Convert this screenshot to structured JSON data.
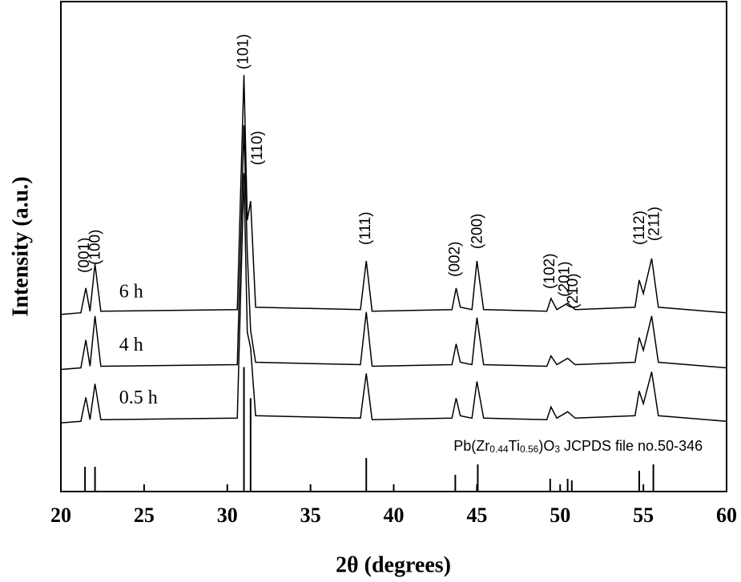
{
  "chart_data": {
    "type": "line",
    "xlabel": "2θ (degrees)",
    "ylabel": "Intensity (a.u.)",
    "xlim": [
      20,
      60
    ],
    "xticks": [
      20,
      25,
      30,
      35,
      40,
      45,
      50,
      55,
      60
    ],
    "ylim": [
      0,
      614
    ],
    "x": [
      20,
      21.2,
      21.5,
      21.75,
      22.05,
      22.4,
      30.6,
      31.0,
      31.2,
      31.4,
      31.7,
      38.0,
      38.35,
      38.7,
      43.5,
      43.75,
      44.0,
      44.7,
      45.0,
      45.4,
      49.2,
      49.45,
      49.8,
      50.45,
      50.9,
      54.5,
      54.75,
      55.0,
      55.5,
      55.9,
      60
    ],
    "series": [
      {
        "name": "6 h",
        "color": "#000000",
        "label_x": 23.5,
        "label_y": 249,
        "values": [
          222,
          224,
          255,
          226,
          285,
          226,
          228,
          522,
          340,
          364,
          231,
          228,
          289,
          226,
          228,
          255,
          231,
          228,
          289,
          228,
          226,
          242,
          228,
          236,
          228,
          231,
          265,
          248,
          292,
          231,
          224
        ]
      },
      {
        "name": "4 h",
        "color": "#000000",
        "label_x": 23.5,
        "label_y": 182,
        "values": [
          153,
          155,
          190,
          157,
          220,
          157,
          159,
          459,
          300,
          202,
          162,
          159,
          225,
          157,
          159,
          185,
          162,
          159,
          218,
          159,
          157,
          170,
          159,
          167,
          159,
          162,
          193,
          177,
          220,
          162,
          155
        ]
      },
      {
        "name": "0.5 h",
        "color": "#000000",
        "label_x": 23.5,
        "label_y": 116,
        "values": [
          86,
          88,
          118,
          90,
          135,
          90,
          92,
          399,
          200,
          180,
          95,
          92,
          148,
          90,
          92,
          117,
          95,
          92,
          138,
          92,
          90,
          106,
          92,
          100,
          92,
          95,
          126,
          110,
          150,
          95,
          88
        ]
      }
    ],
    "reference": {
      "color": "#000000",
      "x": [
        21.45,
        22.05,
        31.0,
        31.4,
        38.35,
        43.7,
        45.05,
        49.4,
        50.45,
        50.7,
        54.75,
        55.6
      ],
      "values": [
        31,
        31,
        156,
        117,
        42,
        21,
        34,
        16,
        16,
        14,
        26,
        34
      ],
      "label_x": 43.6,
      "label_y": 56,
      "label_parts": [
        {
          "text": "Pb(Zr"
        },
        {
          "text": "0.44",
          "sub": true
        },
        {
          "text": "Ti"
        },
        {
          "text": "0.56",
          "sub": true
        },
        {
          "text": ")O"
        },
        {
          "text": "3",
          "sub": true
        },
        {
          "text": " JCPDS file no.50-346"
        }
      ]
    },
    "annotations": [
      {
        "text": "(001)",
        "x": 21.45,
        "y": 274
      },
      {
        "text": "(100)",
        "x": 22.1,
        "y": 284
      },
      {
        "text": "(101)",
        "x": 31.0,
        "y": 529
      },
      {
        "text": "(110)",
        "x": 31.85,
        "y": 409
      },
      {
        "text": "(111)",
        "x": 38.35,
        "y": 309
      },
      {
        "text": "(002)",
        "x": 43.7,
        "y": 269
      },
      {
        "text": "(200)",
        "x": 45.05,
        "y": 304
      },
      {
        "text": "(102)",
        "x": 49.4,
        "y": 254
      },
      {
        "text": "(201)",
        "x": 50.3,
        "y": 244
      },
      {
        "text": "(210)",
        "x": 50.8,
        "y": 229
      },
      {
        "text": "(112)",
        "x": 54.8,
        "y": 309
      },
      {
        "text": "(211)",
        "x": 55.7,
        "y": 314
      }
    ]
  }
}
